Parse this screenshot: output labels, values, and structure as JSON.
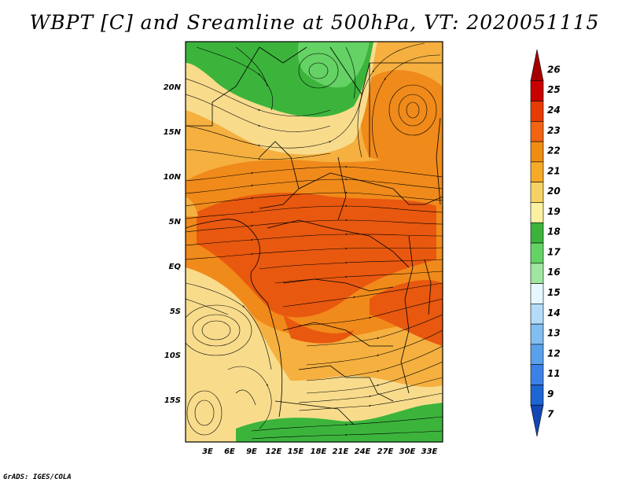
{
  "title": "WBPT [C] and Sreamline at 500hPa, VT: 2020051115",
  "credit": "GrADS: IGES/COLA",
  "lat_labels": [
    "20N",
    "15N",
    "10N",
    "5N",
    "EQ",
    "5S",
    "10S",
    "15S"
  ],
  "lon_labels": [
    "3E",
    "6E",
    "9E",
    "12E",
    "15E",
    "18E",
    "21E",
    "24E",
    "27E",
    "30E",
    "33E"
  ],
  "colorbar": {
    "labels": [
      "26",
      "25",
      "24",
      "23",
      "22",
      "21",
      "20",
      "19",
      "18",
      "17",
      "16",
      "15",
      "14",
      "13",
      "12",
      "11",
      "9",
      "7"
    ],
    "colors": [
      "#a50000",
      "#c80000",
      "#e63c00",
      "#f06414",
      "#f08c14",
      "#f5aa28",
      "#f5d264",
      "#fbf0a0",
      "#3cb43c",
      "#64d264",
      "#a0e6a0",
      "#e6f8ff",
      "#b4dcf8",
      "#82bef0",
      "#5aa0eb",
      "#3c82e6",
      "#1e64d2",
      "#1446b4"
    ]
  },
  "colors": {
    "warmest": "#e8580f",
    "warm": "#f08a1a",
    "mild": "#f5b040",
    "cool": "#f8dc8c",
    "green": "#3cb43c",
    "lightgreen": "#64d264"
  }
}
